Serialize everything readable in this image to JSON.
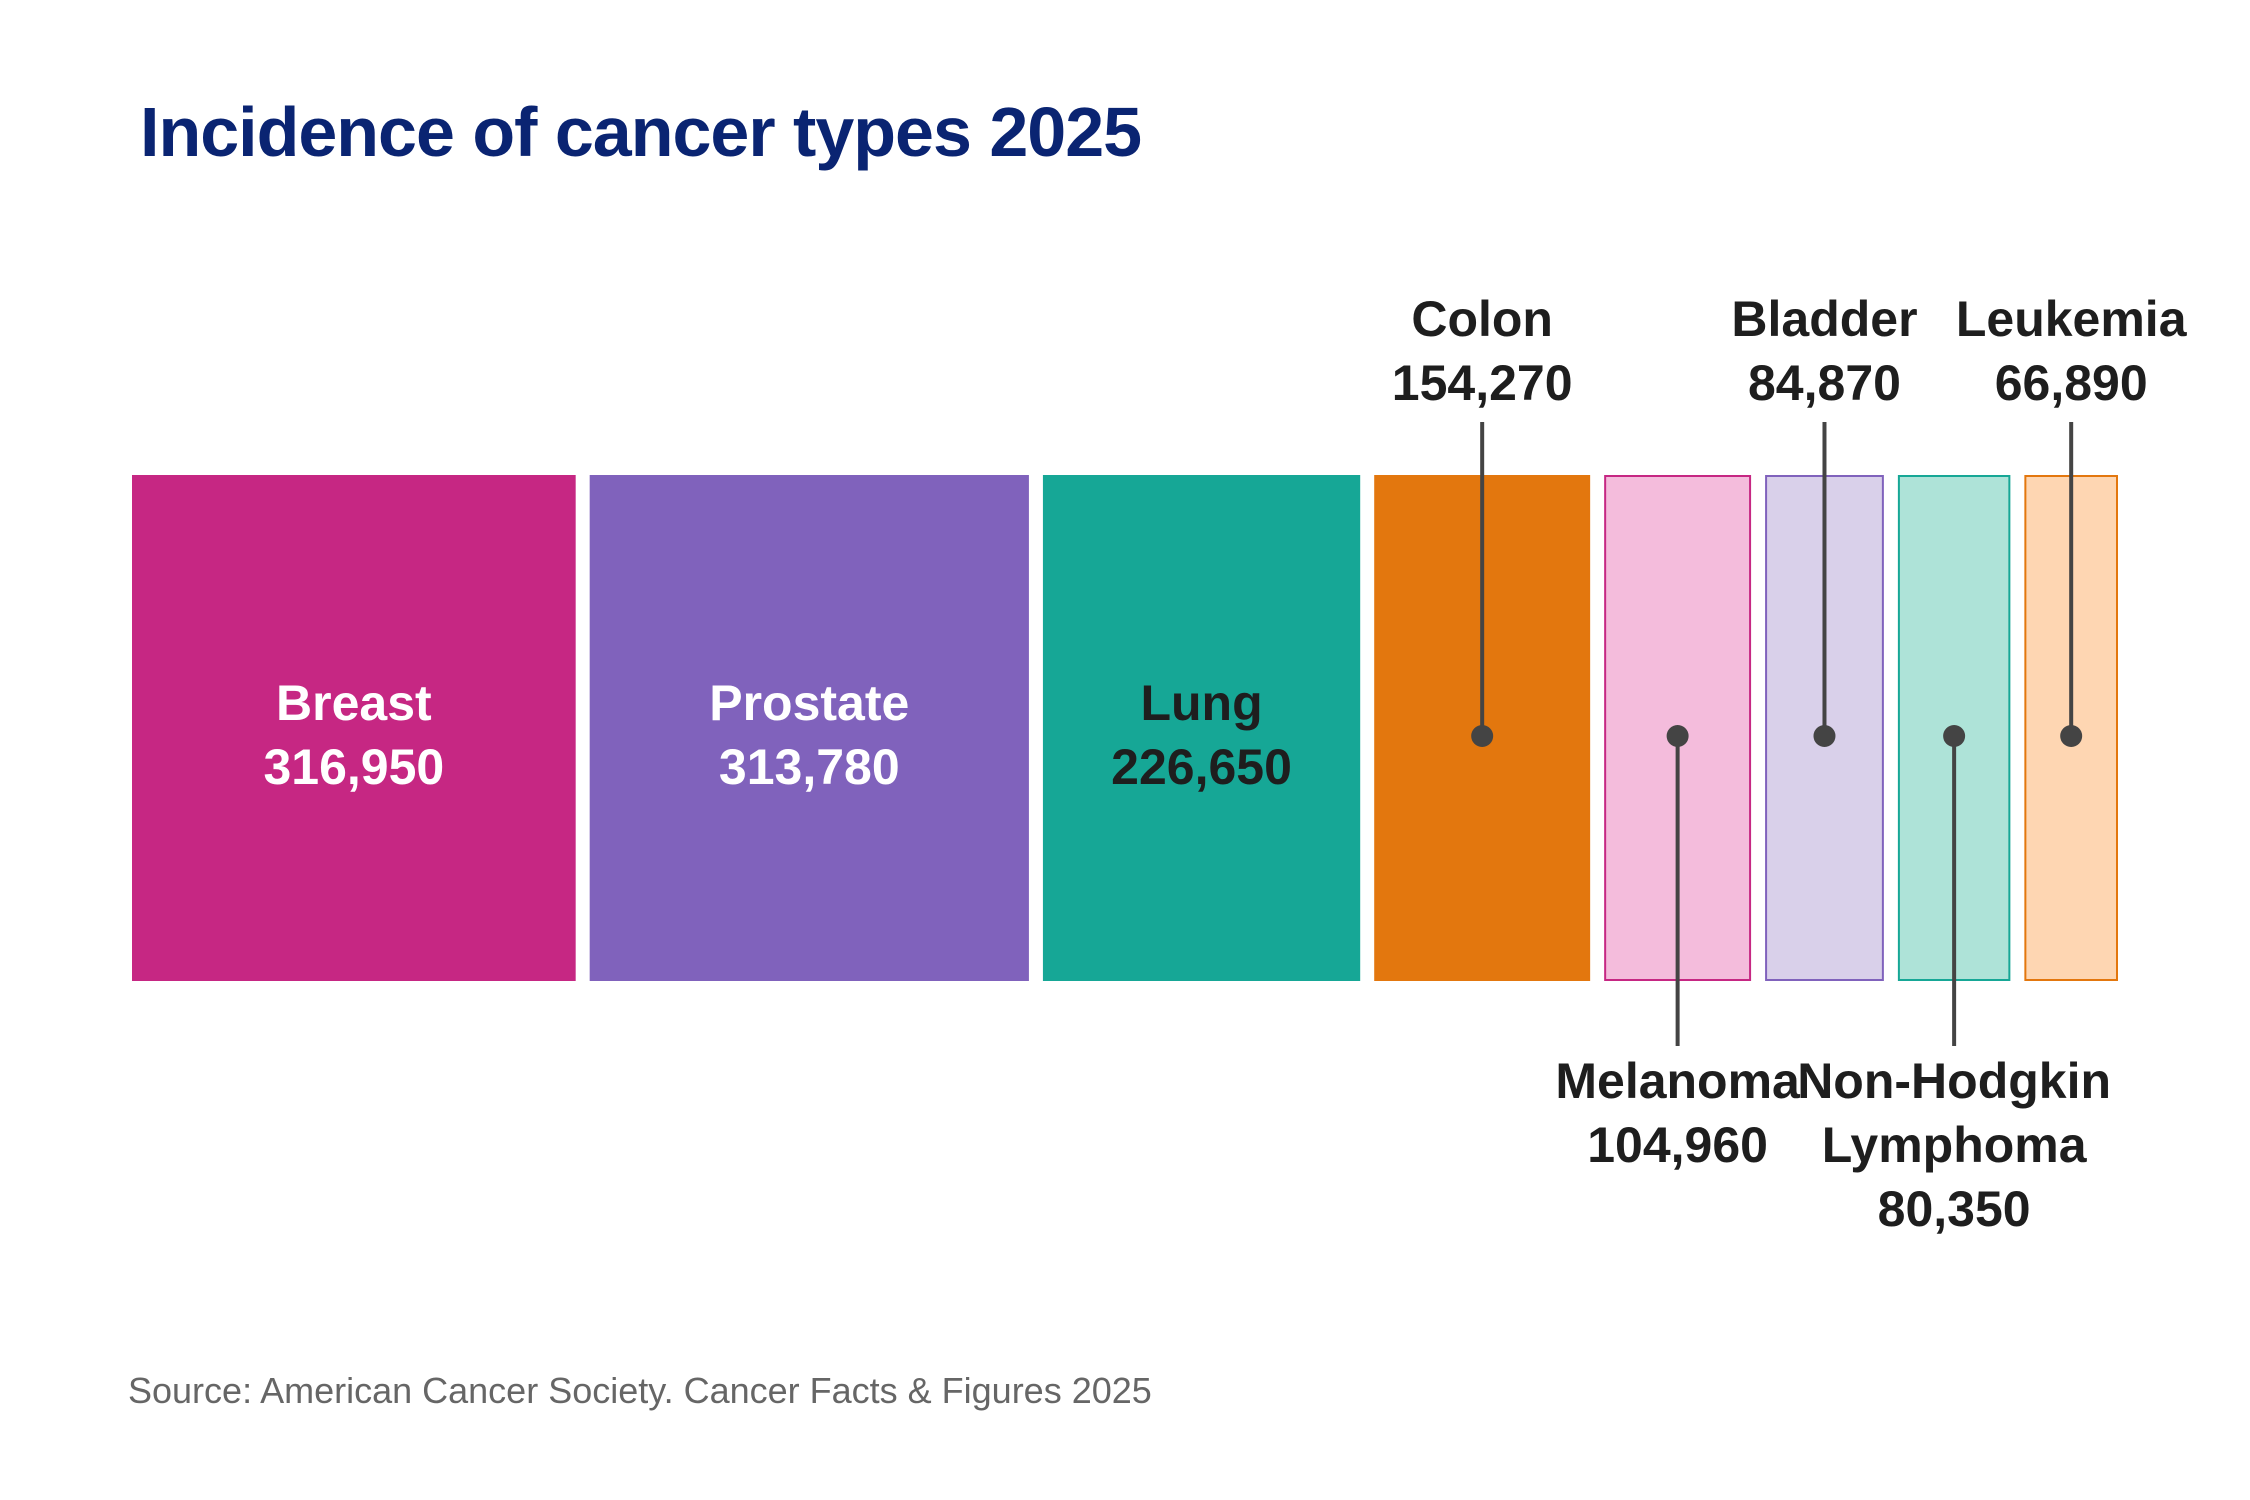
{
  "title": "Incidence of cancer types 2025",
  "source": "Source: American Cancer Society. Cancer Facts & Figures 2025",
  "chart_data": {
    "type": "bar",
    "orientation": "proportional-blocks",
    "title": "Incidence of cancer types 2025",
    "categories": [
      "Breast",
      "Prostate",
      "Lung",
      "Colon",
      "Melanoma",
      "Bladder",
      "Non-Hodgkin Lymphoma",
      "Leukemia"
    ],
    "values": [
      316950,
      313780,
      226650,
      154270,
      104960,
      84870,
      80350,
      66890
    ],
    "value_labels": [
      "316,950",
      "313,780",
      "226,650",
      "154,270",
      "104,960",
      "84,870",
      "80,350",
      "66,890"
    ],
    "label_lines": [
      [
        "Breast"
      ],
      [
        "Prostate"
      ],
      [
        "Lung"
      ],
      [
        "Colon"
      ],
      [
        "Melanoma"
      ],
      [
        "Bladder"
      ],
      [
        "Non-Hodgkin",
        "Lymphoma"
      ],
      [
        "Leukemia"
      ]
    ],
    "label_position": [
      "inside",
      "inside",
      "inside",
      "above",
      "below",
      "above",
      "below",
      "above"
    ],
    "fills": [
      "#c62783",
      "#8062bc",
      "#16a796",
      "#e3770e",
      "#f4bcdc",
      "#d9d0ea",
      "#aee3d8",
      "#fed6b2"
    ],
    "strokes": [
      "#c62783",
      "#8062bc",
      "#16a796",
      "#e3770e",
      "#c62783",
      "#8062bc",
      "#16a796",
      "#e3770e"
    ],
    "label_colors": [
      "#ffffff",
      "#ffffff",
      "#1e1e1e",
      "#1e1e1e",
      "#1e1e1e",
      "#1e1e1e",
      "#1e1e1e",
      "#1e1e1e"
    ],
    "xlabel": "",
    "ylabel": "",
    "grid": false
  },
  "colors": {
    "title": "#0a2472",
    "label": "#1e1e1e",
    "leader": "#444444",
    "source": "#666666"
  }
}
